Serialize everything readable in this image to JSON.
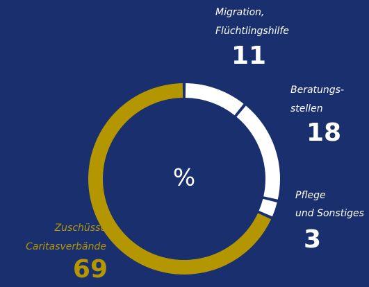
{
  "chart_data": {
    "type": "pie",
    "donut": true,
    "center_label": "%",
    "categories": [
      [
        "Migration,",
        "Flüchtlingshilfe"
      ],
      [
        "Beratungs-",
        "stellen"
      ],
      [
        "Pflege",
        "und Sonstiges"
      ],
      [
        "Zuschüsse",
        "Caritasverbände"
      ]
    ],
    "values": [
      11,
      18,
      3,
      69
    ],
    "colors": [
      "#ffffff",
      "#ffffff",
      "#ffffff",
      "#b39600"
    ]
  }
}
